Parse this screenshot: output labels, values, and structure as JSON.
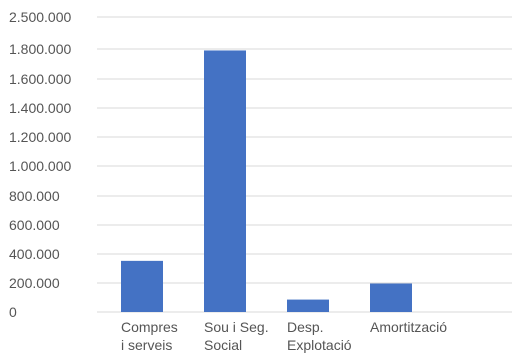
{
  "chart_data": {
    "type": "bar",
    "title": "",
    "xlabel": "",
    "ylabel": "",
    "categories": [
      [
        "Compres",
        "i serveis"
      ],
      [
        "Sou i Seg.",
        "Social"
      ],
      [
        "Desp.",
        "Explotació"
      ],
      [
        "Amortització"
      ]
    ],
    "values": [
      350000,
      1790000,
      85000,
      195000
    ],
    "ylim": [
      0,
      2500000
    ],
    "yticks": [
      0,
      200000,
      400000,
      600000,
      800000,
      1000000,
      1200000,
      1400000,
      1600000,
      1800000,
      2500000
    ],
    "ytick_labels": [
      "0",
      "200.000",
      "400.000",
      "600.000",
      "800.000",
      "1.000.000",
      "1.200.000",
      "1.400.000",
      "1.600.000",
      "1.800.000",
      "2.500.000"
    ],
    "grid": true,
    "legend": "none",
    "colors": {
      "bar": "#4472C4",
      "grid": "#d9d9d9",
      "text": "#555555"
    }
  }
}
